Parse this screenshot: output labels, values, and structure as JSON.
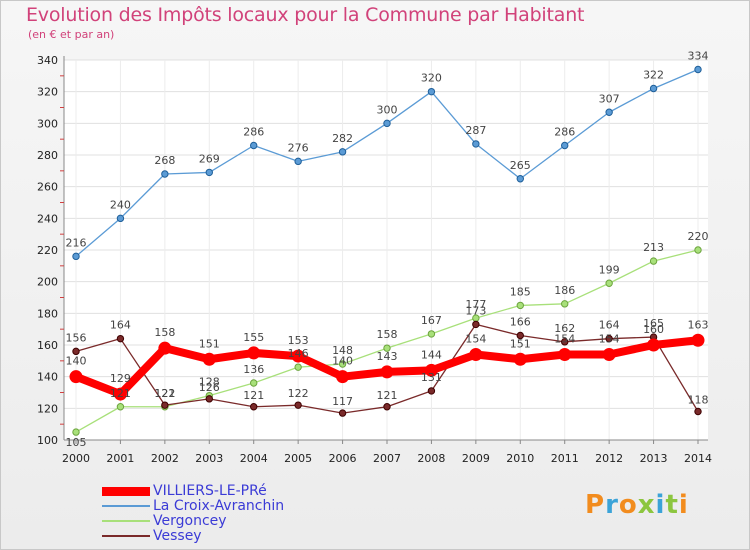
{
  "header": {
    "title": "Evolution des Impôts locaux pour la Commune par Habitant",
    "subtitle": "(en € et par an)"
  },
  "logo": {
    "text": "Proxiti",
    "colors": [
      "#f28c1e",
      "#3ba3d8",
      "#f28c1e",
      "#8cc63f",
      "#3ba3d8",
      "#8cc63f",
      "#f28c1e"
    ]
  },
  "chart_data": {
    "type": "line",
    "x": [
      "2000",
      "2001",
      "2002",
      "2003",
      "2004",
      "2005",
      "2006",
      "2007",
      "2008",
      "2009",
      "2010",
      "2011",
      "2012",
      "2013",
      "2014"
    ],
    "ylim": [
      100,
      340
    ],
    "yticks": [
      100,
      120,
      140,
      160,
      180,
      200,
      220,
      240,
      260,
      280,
      300,
      320,
      340
    ],
    "grid": true,
    "legend_position": "bottom-left",
    "series": [
      {
        "name": "La Croix-Avranchin",
        "color": "#5b9bd5",
        "values": [
          216,
          240,
          268,
          269,
          286,
          276,
          282,
          300,
          320,
          287,
          265,
          286,
          307,
          322,
          334
        ]
      },
      {
        "name": "Vergoncey",
        "color": "#a8e07a",
        "values": [
          105,
          121,
          121,
          128,
          136,
          146,
          148,
          158,
          167,
          177,
          185,
          186,
          199,
          213,
          220
        ]
      },
      {
        "name": "Vessey",
        "color": "#7a2a2a",
        "values": [
          156,
          164,
          122,
          126,
          121,
          122,
          117,
          121,
          131,
          173,
          166,
          162,
          164,
          165,
          118
        ]
      },
      {
        "name": "VILLIERS-LE-PRé",
        "color": "#ff0000",
        "values": [
          140,
          129,
          158,
          151,
          155,
          153,
          140,
          143,
          144,
          154,
          151,
          154,
          154,
          160,
          163
        ]
      }
    ]
  }
}
